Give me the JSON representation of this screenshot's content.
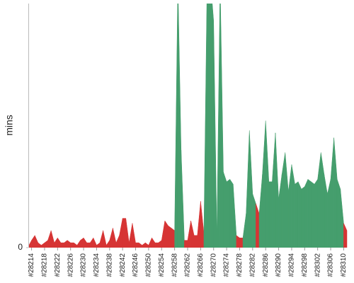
{
  "chart_data": {
    "type": "area",
    "y_label": "mins",
    "ylim": [
      0,
      100
    ],
    "yticks": [
      0
    ],
    "categories": [
      null,
      "#28214",
      null,
      null,
      null,
      "#28218",
      null,
      null,
      null,
      "#28222",
      null,
      null,
      null,
      "#28226",
      null,
      null,
      null,
      "#28230",
      null,
      null,
      null,
      "#28234",
      null,
      null,
      null,
      "#28238",
      null,
      null,
      null,
      "#28242",
      null,
      null,
      null,
      "#28246",
      null,
      null,
      null,
      "#28250",
      null,
      null,
      null,
      "#28254",
      null,
      null,
      null,
      "#28258",
      null,
      null,
      null,
      "#28262",
      null,
      null,
      null,
      "#28266",
      null,
      null,
      null,
      "#28270",
      null,
      null,
      null,
      "#28274",
      null,
      null,
      null,
      "#28278",
      null,
      null,
      null,
      "#28282",
      null,
      null,
      null,
      "#28286",
      null,
      null,
      null,
      "#28290",
      null,
      null,
      null,
      "#28294",
      null,
      null,
      null,
      "#28298",
      null,
      null,
      null,
      "#28302",
      null,
      null,
      null,
      "#28306",
      null,
      null,
      null,
      "#28310",
      null
    ],
    "values": [
      0.5,
      3,
      5,
      2,
      1,
      2,
      3,
      7,
      2,
      4,
      2,
      2,
      3,
      2,
      2,
      1,
      3,
      4,
      2,
      2,
      4,
      1,
      2,
      7,
      1,
      3,
      8,
      2,
      5,
      12,
      12,
      2,
      10,
      2,
      2,
      1,
      2,
      1,
      4,
      2,
      2,
      3,
      11,
      9,
      8,
      7,
      110,
      40,
      3,
      3,
      11,
      5,
      5,
      19,
      6,
      110,
      110,
      93,
      5,
      110,
      31,
      27,
      28,
      26,
      5,
      4,
      4,
      14,
      48,
      22,
      18,
      14,
      30,
      52,
      27,
      27,
      47,
      20,
      30,
      39,
      23,
      34,
      26,
      27,
      24,
      25,
      28,
      27,
      26,
      28,
      39,
      30,
      22,
      28,
      45,
      28,
      24,
      10,
      7
    ],
    "colors": [
      "#d63434",
      "#d63434",
      "#d63434",
      "#d63434",
      "#d63434",
      "#d63434",
      "#d63434",
      "#d63434",
      "#d63434",
      "#d63434",
      "#d63434",
      "#d63434",
      "#d63434",
      "#d63434",
      "#d63434",
      "#d63434",
      "#d63434",
      "#d63434",
      "#d63434",
      "#d63434",
      "#d63434",
      "#d63434",
      "#d63434",
      "#d63434",
      "#d63434",
      "#d63434",
      "#d63434",
      "#d63434",
      "#d63434",
      "#d63434",
      "#d63434",
      "#d63434",
      "#d63434",
      "#d63434",
      "#d63434",
      "#d63434",
      "#d63434",
      "#d63434",
      "#d63434",
      "#d63434",
      "#d63434",
      "#d63434",
      "#d63434",
      "#d63434",
      "#d63434",
      "#d63434",
      "#459e6d",
      "#459e6d",
      "#d63434",
      "#d63434",
      "#d63434",
      "#d63434",
      "#d63434",
      "#d63434",
      "#d63434",
      "#459e6d",
      "#459e6d",
      "#459e6d",
      "#d63434",
      "#459e6d",
      "#459e6d",
      "#459e6d",
      "#459e6d",
      "#459e6d",
      "#d63434",
      "#d63434",
      "#d63434",
      "#459e6d",
      "#459e6d",
      "#459e6d",
      "#d63434",
      "#d63434",
      "#459e6d",
      "#459e6d",
      "#459e6d",
      "#459e6d",
      "#459e6d",
      "#d63434",
      "#459e6d",
      "#459e6d",
      "#459e6d",
      "#459e6d",
      "#459e6d",
      "#459e6d",
      "#459e6d",
      "#459e6d",
      "#459e6d",
      "#459e6d",
      "#459e6d",
      "#459e6d",
      "#459e6d",
      "#459e6d",
      "#459e6d",
      "#459e6d",
      "#459e6d",
      "#459e6d",
      "#459e6d",
      "#d63434",
      "#d63434"
    ]
  }
}
